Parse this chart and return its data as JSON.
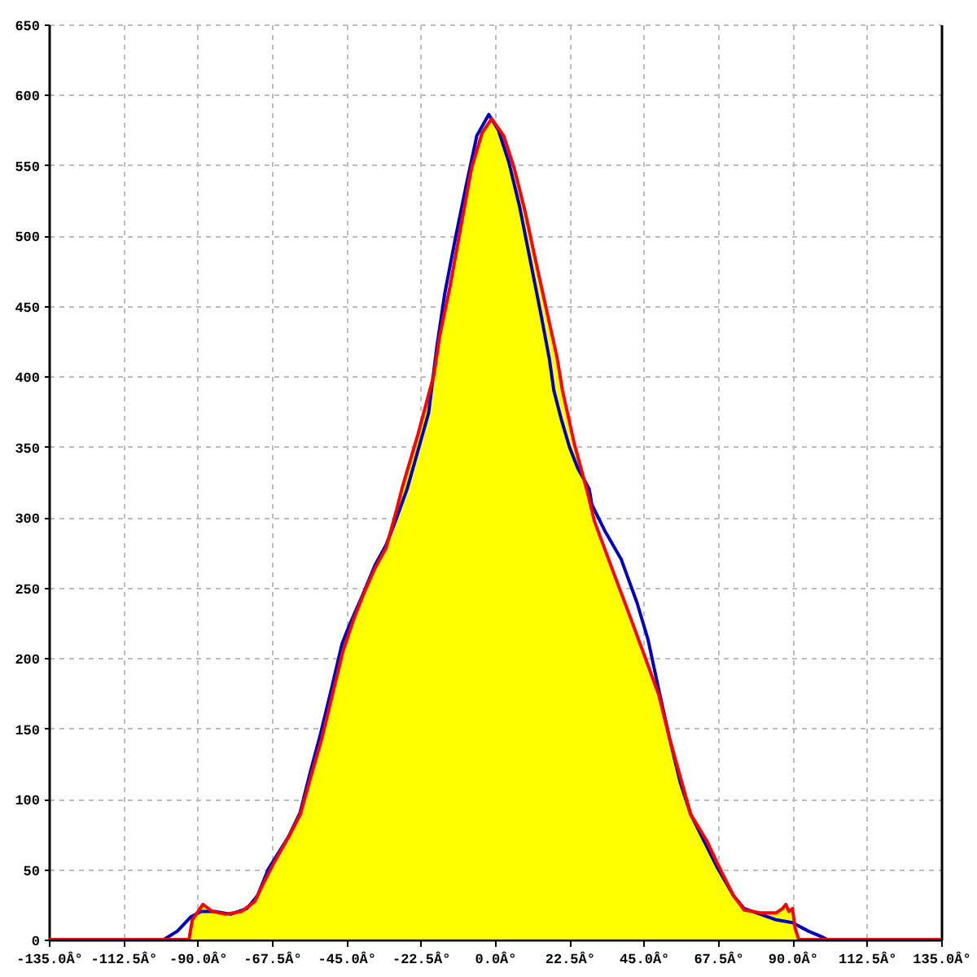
{
  "chart_data": {
    "type": "line",
    "xlim": [
      -135,
      135
    ],
    "xticks": [
      {
        "value": -135,
        "label": "-135.0Â°"
      },
      {
        "value": -112.5,
        "label": "-112.5Â°"
      },
      {
        "value": -90,
        "label": "-90.0Â°"
      },
      {
        "value": -67.5,
        "label": "-67.5Â°"
      },
      {
        "value": -45,
        "label": "-45.0Â°"
      },
      {
        "value": -22.5,
        "label": "-22.5Â°"
      },
      {
        "value": 0,
        "label": "0.0Â°"
      },
      {
        "value": 22.5,
        "label": "22.5Â°"
      },
      {
        "value": 45,
        "label": "45.0Â°"
      },
      {
        "value": 67.5,
        "label": "67.5Â°"
      },
      {
        "value": 90,
        "label": "90.0Â°"
      },
      {
        "value": 112.5,
        "label": "112.5Â°"
      },
      {
        "value": 135,
        "label": "135.0Â°"
      }
    ],
    "ylim": [
      0,
      650
    ],
    "yticks": [
      0,
      50,
      100,
      150,
      200,
      250,
      300,
      350,
      400,
      450,
      500,
      550,
      600,
      650
    ],
    "grid": true,
    "series": [
      {
        "type": "area",
        "color": "#ffff00",
        "x": [
          -92.6,
          -91.6,
          -88.4,
          -85.6,
          -81.6,
          -76.7,
          -72.7,
          -70.3,
          -67,
          -62.2,
          -58.9,
          -55.7,
          -52.4,
          -49.2,
          -46,
          -42.7,
          -39.5,
          -36.3,
          -33,
          -29.8,
          -28.2,
          -23.3,
          -18.5,
          -16.8,
          -13.6,
          -10.3,
          -7.1,
          -3.9,
          -1,
          2.6,
          5.8,
          9.1,
          12.3,
          15.5,
          18.8,
          20.4,
          24,
          27.7,
          30.1,
          35,
          39.8,
          44.7,
          49.5,
          52.8,
          56,
          59.2,
          64.1,
          67.3,
          72.2,
          75.4,
          80.3,
          85.1,
          87,
          88,
          88.9,
          90,
          90.8,
          91.9
        ],
        "values": [
          0,
          14,
          25,
          20,
          18,
          20,
          27,
          39,
          54,
          74,
          89,
          116,
          143,
          174,
          205,
          228,
          247,
          264,
          278,
          305,
          320,
          359,
          401,
          428,
          464,
          507,
          548,
          573,
          583,
          571,
          548,
          517,
          482,
          448,
          413,
          390,
          352,
          320,
          297,
          266,
          236,
          205,
          174,
          143,
          116,
          89,
          70,
          54,
          31,
          21,
          19,
          19,
          22,
          25,
          20,
          22,
          8,
          0
        ]
      },
      {
        "color": "#0000c0",
        "x": [
          -100.2,
          -96.1,
          -92.1,
          -88.9,
          -84.8,
          -80,
          -75.1,
          -71.9,
          -68.6,
          -62.5,
          -59,
          -56,
          -52.8,
          -49.5,
          -46.3,
          -44.3,
          -40,
          -36.3,
          -33,
          -30,
          -26.6,
          -20.1,
          -17.6,
          -15.2,
          -12,
          -8.7,
          -5.5,
          -1.9,
          1,
          4.2,
          7.4,
          10.7,
          13.9,
          16.4,
          17.8,
          20,
          22.5,
          25,
          28.5,
          29.3,
          33.3,
          38.2,
          43,
          46.3,
          49.5,
          52.8,
          56,
          59.2,
          64.1,
          67.3,
          72.2,
          75.4,
          80.3,
          85.1,
          90,
          94.8,
          98.9,
          100.5
        ],
        "values": [
          0,
          6,
          16,
          20,
          20,
          18,
          22,
          31,
          50,
          73,
          90,
          118,
          146,
          178,
          210,
          222,
          245,
          266,
          280,
          298,
          320,
          374,
          421,
          459,
          498,
          536,
          571,
          586,
          575,
          552,
          521,
          482,
          444,
          413,
          390,
          370,
          350,
          335,
          320,
          309,
          290,
          270,
          239,
          213,
          178,
          143,
          112,
          89,
          66,
          51,
          31,
          22,
          18,
          14,
          12,
          6,
          2,
          0
        ]
      },
      {
        "color": "#ff0000",
        "x": [
          -135,
          -92.6,
          -91.6,
          -88.4,
          -85.6,
          -81.6,
          -76.7,
          -72.7,
          -70.3,
          -67,
          -62.2,
          -58.9,
          -55.7,
          -52.4,
          -49.2,
          -46,
          -42.7,
          -39.5,
          -36.3,
          -33,
          -29.8,
          -28.2,
          -23.3,
          -18.5,
          -16.8,
          -13.6,
          -10.3,
          -7.1,
          -3.9,
          -1,
          2.6,
          5.8,
          9.1,
          12.3,
          15.5,
          18.8,
          20.4,
          24,
          27.7,
          30.1,
          35,
          39.8,
          44.7,
          49.5,
          52.8,
          56,
          59.2,
          64.1,
          67.3,
          72.2,
          75.4,
          80.3,
          85.1,
          87,
          88,
          88.9,
          90,
          90.8,
          91.9,
          135
        ],
        "values": [
          0,
          0,
          14,
          25,
          20,
          18,
          20,
          27,
          39,
          54,
          74,
          89,
          116,
          143,
          174,
          205,
          228,
          247,
          264,
          278,
          305,
          320,
          359,
          401,
          428,
          464,
          507,
          548,
          573,
          583,
          571,
          548,
          517,
          482,
          448,
          413,
          390,
          352,
          320,
          297,
          266,
          236,
          205,
          174,
          143,
          116,
          89,
          70,
          54,
          31,
          21,
          19,
          19,
          22,
          25,
          20,
          22,
          8,
          0,
          0
        ]
      }
    ]
  }
}
